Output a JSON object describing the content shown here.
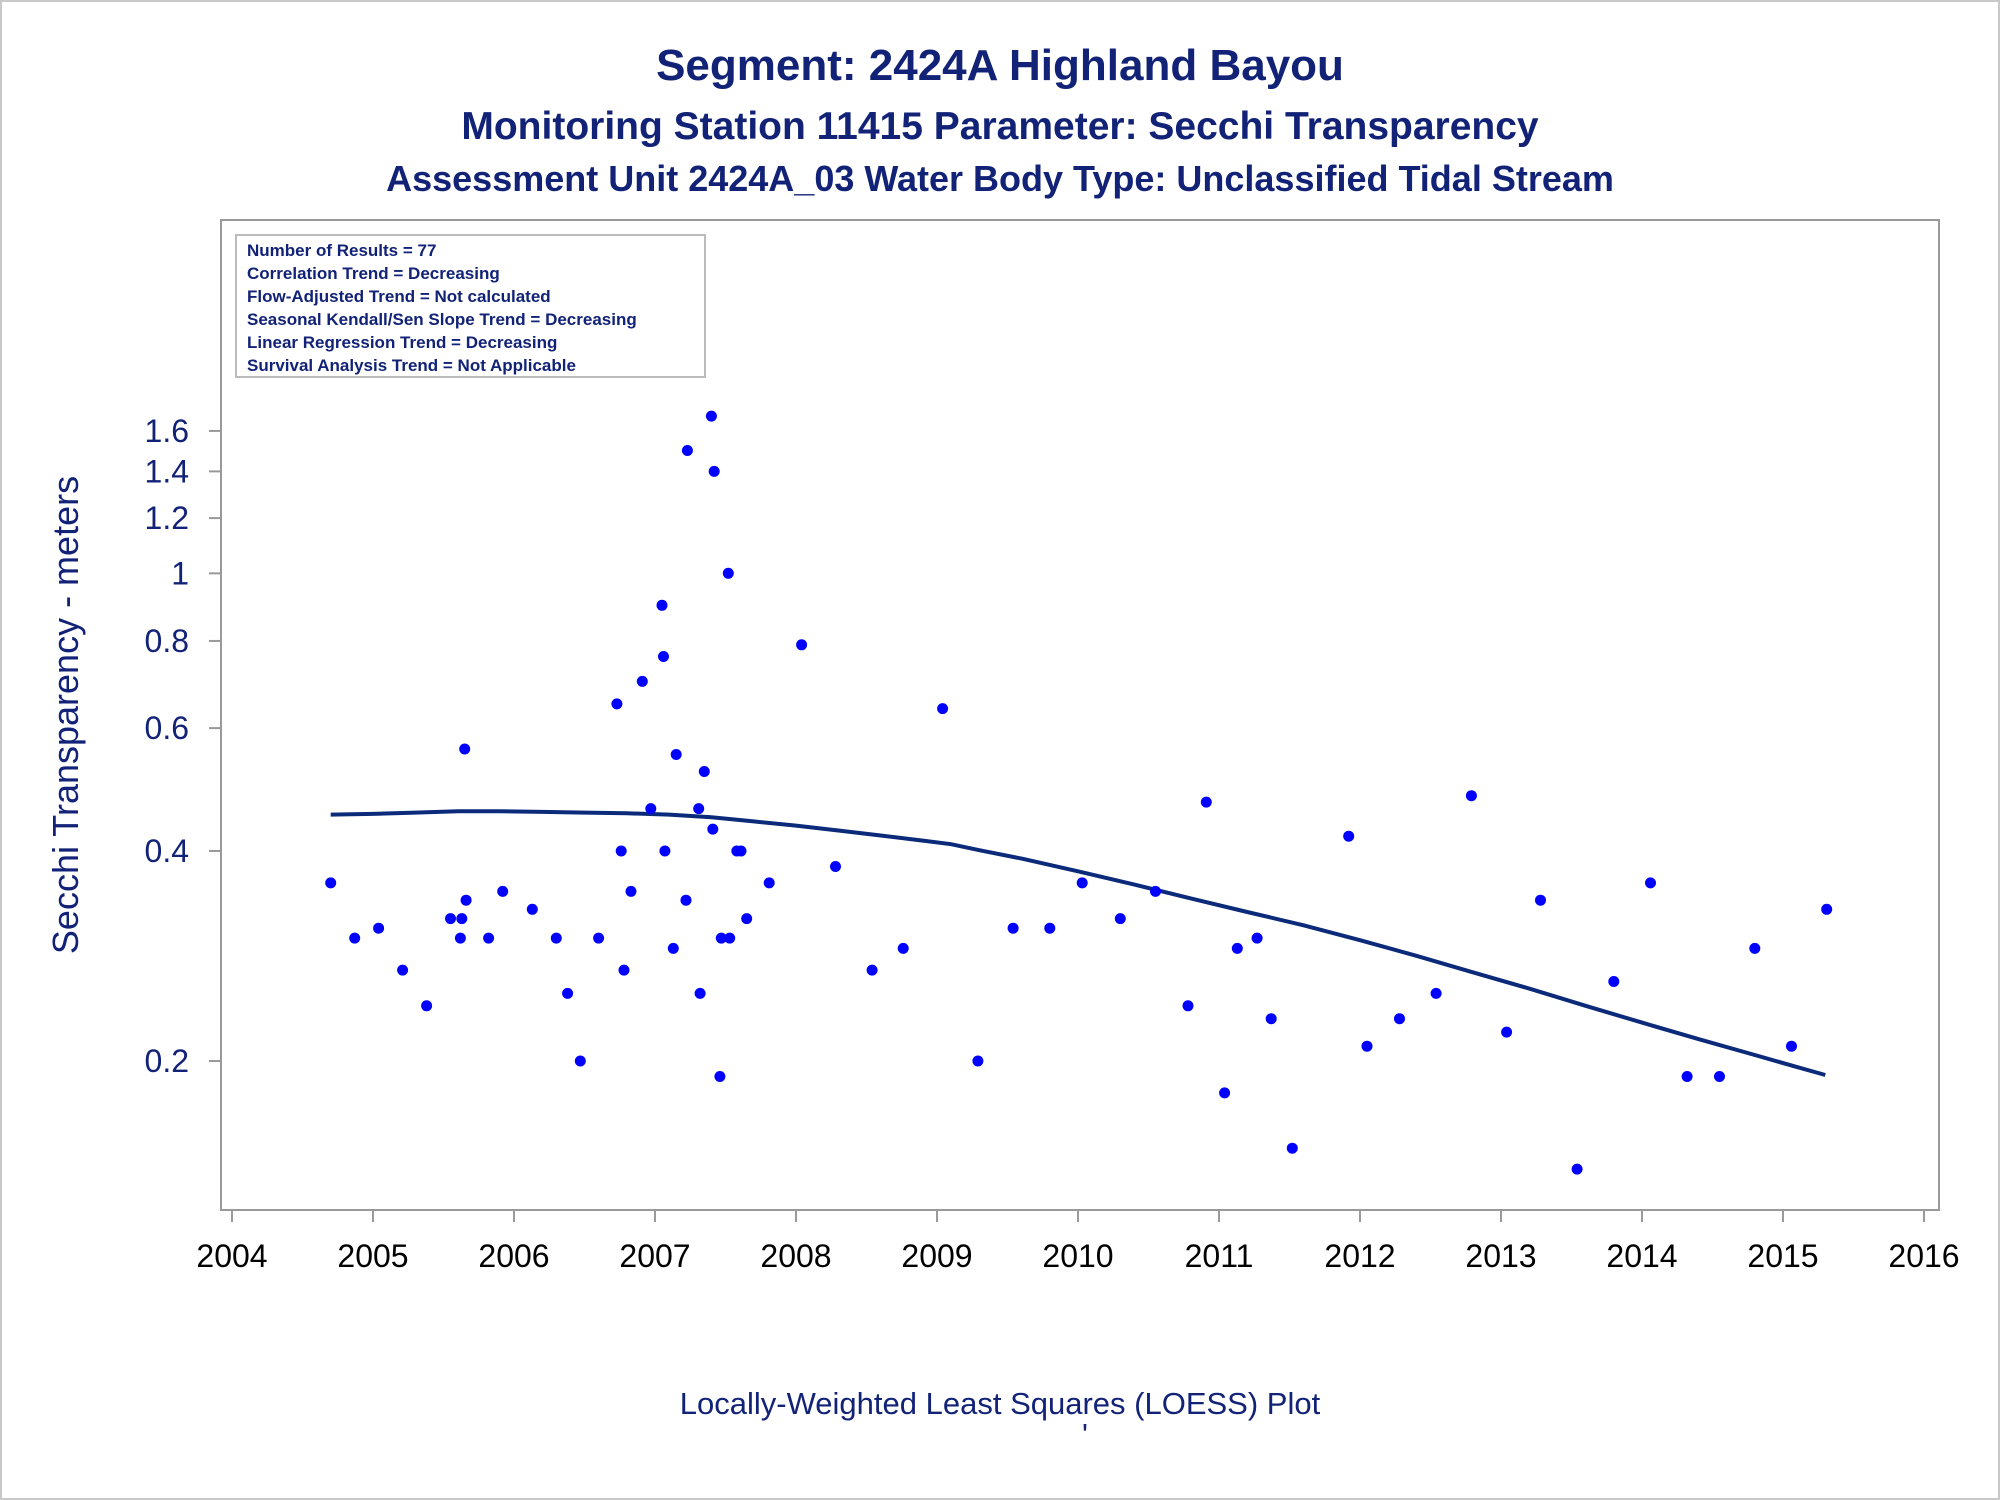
{
  "title": "Segment: 2424A  Highland Bayou",
  "subtitle1": "Monitoring Station 11415 Parameter: Secchi Transparency",
  "subtitle2": "Assessment Unit 2424A_03   Water Body Type: Unclassified Tidal Stream",
  "footnote": "Locally-Weighted Least Squares (LOESS) Plot",
  "footnote_mark": "'",
  "stats": [
    "Number of Results = 77",
    "Correlation Trend = Decreasing",
    "Flow-Adjusted Trend = Not calculated",
    "Seasonal Kendall/Sen Slope Trend = Decreasing",
    "Linear Regression Trend = Decreasing",
    "Survival Analysis Trend = Not Applicable"
  ],
  "colors": {
    "points": "#0000ff",
    "loess": "#0c2a7a",
    "text": "#112277",
    "axis": "#999999"
  },
  "chart_data": {
    "type": "scatter",
    "ylabel": "Secchi Transparency - meters",
    "xlabel": "",
    "xlim": [
      2004,
      2016
    ],
    "ylim": [
      0.125,
      1.75
    ],
    "yscale": "log",
    "x_ticks": [
      "2004",
      "2005",
      "2006",
      "2007",
      "2008",
      "2009",
      "2010",
      "2011",
      "2012",
      "2013",
      "2014",
      "2015",
      "2016"
    ],
    "y_ticks": [
      {
        "value": 0.2,
        "label": "0.2"
      },
      {
        "value": 0.4,
        "label": "0.4"
      },
      {
        "value": 0.6,
        "label": "0.6"
      },
      {
        "value": 0.8,
        "label": "0.8"
      },
      {
        "value": 1.0,
        "label": "1"
      },
      {
        "value": 1.2,
        "label": "1.2"
      },
      {
        "value": 1.4,
        "label": "1.4"
      },
      {
        "value": 1.6,
        "label": "1.6"
      }
    ],
    "points": [
      [
        2004.7,
        0.36
      ],
      [
        2004.87,
        0.3
      ],
      [
        2005.04,
        0.31
      ],
      [
        2005.21,
        0.27
      ],
      [
        2005.38,
        0.24
      ],
      [
        2005.55,
        0.32
      ],
      [
        2005.62,
        0.3
      ],
      [
        2005.63,
        0.32
      ],
      [
        2005.65,
        0.56
      ],
      [
        2005.66,
        0.34
      ],
      [
        2005.82,
        0.3
      ],
      [
        2005.92,
        0.35
      ],
      [
        2006.13,
        0.33
      ],
      [
        2006.3,
        0.3
      ],
      [
        2006.38,
        0.25
      ],
      [
        2006.47,
        0.2
      ],
      [
        2006.6,
        0.3
      ],
      [
        2006.73,
        0.65
      ],
      [
        2006.76,
        0.4
      ],
      [
        2006.78,
        0.27
      ],
      [
        2006.83,
        0.35
      ],
      [
        2006.91,
        0.7
      ],
      [
        2006.97,
        0.46
      ],
      [
        2007.05,
        0.9
      ],
      [
        2007.06,
        0.76
      ],
      [
        2007.07,
        0.4
      ],
      [
        2007.13,
        0.29
      ],
      [
        2007.15,
        0.55
      ],
      [
        2007.22,
        0.34
      ],
      [
        2007.23,
        1.5
      ],
      [
        2007.31,
        0.46
      ],
      [
        2007.32,
        0.25
      ],
      [
        2007.35,
        0.52
      ],
      [
        2007.4,
        1.68
      ],
      [
        2007.41,
        0.43
      ],
      [
        2007.42,
        1.4
      ],
      [
        2007.46,
        0.19
      ],
      [
        2007.47,
        0.3
      ],
      [
        2007.52,
        1.0
      ],
      [
        2007.53,
        0.3
      ],
      [
        2007.58,
        0.4
      ],
      [
        2007.61,
        0.4
      ],
      [
        2007.65,
        0.32
      ],
      [
        2007.81,
        0.36
      ],
      [
        2008.04,
        0.79
      ],
      [
        2008.28,
        0.38
      ],
      [
        2008.54,
        0.27
      ],
      [
        2008.76,
        0.29
      ],
      [
        2009.04,
        0.64
      ],
      [
        2009.29,
        0.2
      ],
      [
        2009.54,
        0.31
      ],
      [
        2009.8,
        0.31
      ],
      [
        2010.03,
        0.36
      ],
      [
        2010.3,
        0.32
      ],
      [
        2010.55,
        0.35
      ],
      [
        2010.78,
        0.24
      ],
      [
        2010.91,
        0.47
      ],
      [
        2011.04,
        0.18
      ],
      [
        2011.13,
        0.29
      ],
      [
        2011.27,
        0.3
      ],
      [
        2011.37,
        0.23
      ],
      [
        2011.52,
        0.15
      ],
      [
        2011.92,
        0.42
      ],
      [
        2012.05,
        0.21
      ],
      [
        2012.28,
        0.23
      ],
      [
        2012.54,
        0.25
      ],
      [
        2012.79,
        0.48
      ],
      [
        2013.04,
        0.22
      ],
      [
        2013.28,
        0.34
      ],
      [
        2013.54,
        0.14
      ],
      [
        2013.8,
        0.26
      ],
      [
        2014.06,
        0.36
      ],
      [
        2014.32,
        0.19
      ],
      [
        2014.55,
        0.19
      ],
      [
        2014.8,
        0.29
      ],
      [
        2015.06,
        0.21
      ],
      [
        2015.31,
        0.33
      ]
    ],
    "loess": [
      [
        2004.7,
        0.451
      ],
      [
        2005.0,
        0.452
      ],
      [
        2005.3,
        0.454
      ],
      [
        2005.6,
        0.456
      ],
      [
        2005.9,
        0.456
      ],
      [
        2006.2,
        0.455
      ],
      [
        2006.5,
        0.454
      ],
      [
        2006.8,
        0.453
      ],
      [
        2007.1,
        0.451
      ],
      [
        2007.4,
        0.447
      ],
      [
        2007.7,
        0.441
      ],
      [
        2008.0,
        0.435
      ],
      [
        2008.3,
        0.428
      ],
      [
        2008.6,
        0.421
      ],
      [
        2008.9,
        0.414
      ],
      [
        2009.1,
        0.409
      ],
      [
        2009.3,
        0.401
      ],
      [
        2009.6,
        0.39
      ],
      [
        2010.0,
        0.374
      ],
      [
        2010.4,
        0.358
      ],
      [
        2010.8,
        0.342
      ],
      [
        2011.2,
        0.327
      ],
      [
        2011.6,
        0.313
      ],
      [
        2012.0,
        0.298
      ],
      [
        2012.4,
        0.283
      ],
      [
        2012.8,
        0.268
      ],
      [
        2013.2,
        0.254
      ],
      [
        2013.6,
        0.24
      ],
      [
        2014.0,
        0.227
      ],
      [
        2014.4,
        0.215
      ],
      [
        2014.8,
        0.204
      ],
      [
        2015.1,
        0.196
      ],
      [
        2015.3,
        0.191
      ]
    ]
  }
}
